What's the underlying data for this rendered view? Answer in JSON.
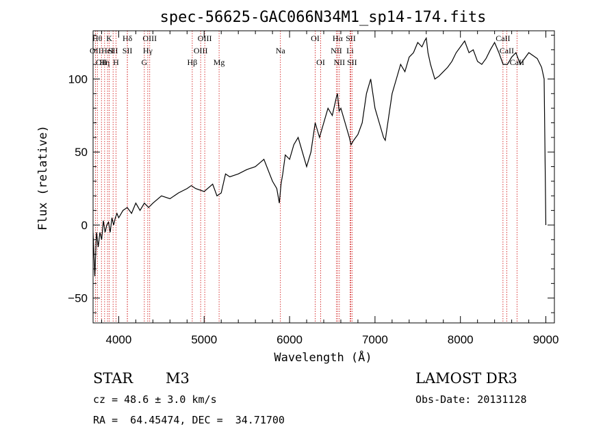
{
  "chart_data": {
    "type": "line",
    "title": "spec-56625-GAC066N34M1_sp14-174.fits",
    "xlabel": "Wavelength (Å)",
    "ylabel": "Flux (relative)",
    "xlim": [
      3700,
      9100
    ],
    "ylim": [
      -67,
      133
    ],
    "xticks": [
      4000,
      5000,
      6000,
      7000,
      8000,
      9000
    ],
    "yticks": [
      -50,
      0,
      50,
      100
    ],
    "grid": false,
    "series": [
      {
        "name": "spectrum",
        "x": [
          3700,
          3720,
          3740,
          3760,
          3780,
          3800,
          3820,
          3840,
          3860,
          3880,
          3900,
          3920,
          3940,
          3960,
          3980,
          4000,
          4050,
          4100,
          4150,
          4200,
          4250,
          4300,
          4350,
          4400,
          4500,
          4600,
          4700,
          4800,
          4850,
          4900,
          5000,
          5100,
          5150,
          5200,
          5250,
          5300,
          5400,
          5500,
          5600,
          5700,
          5800,
          5850,
          5880,
          5900,
          5920,
          5950,
          6000,
          6050,
          6100,
          6150,
          6200,
          6250,
          6300,
          6350,
          6400,
          6450,
          6500,
          6550,
          6560,
          6580,
          6600,
          6650,
          6700,
          6720,
          6750,
          6800,
          6850,
          6900,
          6950,
          7000,
          7050,
          7100,
          7120,
          7150,
          7200,
          7250,
          7300,
          7350,
          7400,
          7450,
          7500,
          7550,
          7580,
          7600,
          7620,
          7650,
          7700,
          7750,
          7800,
          7850,
          7900,
          7950,
          8000,
          8050,
          8100,
          8150,
          8200,
          8250,
          8300,
          8350,
          8400,
          8450,
          8500,
          8550,
          8600,
          8650,
          8700,
          8750,
          8800,
          8850,
          8900,
          8950,
          8980,
          9000
        ],
        "y": [
          -5,
          -35,
          -5,
          -15,
          -5,
          -10,
          3,
          -5,
          0,
          2,
          -5,
          5,
          0,
          5,
          8,
          5,
          10,
          12,
          8,
          15,
          10,
          15,
          12,
          15,
          20,
          18,
          22,
          25,
          27,
          25,
          23,
          28,
          20,
          22,
          35,
          33,
          35,
          38,
          40,
          45,
          30,
          25,
          15,
          28,
          35,
          48,
          45,
          55,
          60,
          50,
          40,
          50,
          70,
          60,
          70,
          80,
          75,
          88,
          90,
          78,
          80,
          70,
          60,
          55,
          58,
          62,
          70,
          90,
          100,
          80,
          70,
          60,
          58,
          70,
          90,
          100,
          110,
          105,
          115,
          118,
          125,
          122,
          126,
          128,
          118,
          110,
          100,
          102,
          105,
          108,
          112,
          118,
          122,
          126,
          118,
          120,
          112,
          110,
          114,
          120,
          125,
          118,
          110,
          110,
          115,
          118,
          110,
          114,
          118,
          116,
          114,
          108,
          100,
          0
        ]
      }
    ],
    "line_markers": [
      {
        "wl": 3727,
        "label": "OII",
        "row": 2
      },
      {
        "wl": 3750,
        "label": "Hθ",
        "row": 1
      },
      {
        "wl": 3798,
        "label": "OII",
        "row": 3
      },
      {
        "wl": 3835,
        "label": "Hη",
        "row": 3
      },
      {
        "wl": 3869,
        "label": "HeI",
        "row": 2
      },
      {
        "wl": 3889,
        "label": "K",
        "row": 1
      },
      {
        "wl": 3934,
        "label": "SII",
        "row": 2
      },
      {
        "wl": 3968,
        "label": "H",
        "row": 3
      },
      {
        "wl": 4102,
        "label": "Hδ",
        "row": 1
      },
      {
        "wl": 4101,
        "label": "SII",
        "row": 2
      },
      {
        "wl": 4300,
        "label": "G",
        "row": 3
      },
      {
        "wl": 4340,
        "label": "Hγ",
        "row": 2
      },
      {
        "wl": 4363,
        "label": "OIII",
        "row": 1
      },
      {
        "wl": 4861,
        "label": "Hβ",
        "row": 3
      },
      {
        "wl": 4959,
        "label": "OIII",
        "row": 2
      },
      {
        "wl": 5007,
        "label": "OIII",
        "row": 1
      },
      {
        "wl": 5175,
        "label": "Mg",
        "row": 3
      },
      {
        "wl": 5893,
        "label": "Na",
        "row": 2
      },
      {
        "wl": 6300,
        "label": "OI",
        "row": 1
      },
      {
        "wl": 6364,
        "label": "OI",
        "row": 3
      },
      {
        "wl": 6548,
        "label": "NII",
        "row": 2
      },
      {
        "wl": 6563,
        "label": "Hα",
        "row": 1
      },
      {
        "wl": 6583,
        "label": "NII",
        "row": 3
      },
      {
        "wl": 6708,
        "label": "Li",
        "row": 2
      },
      {
        "wl": 6716,
        "label": "SII",
        "row": 1
      },
      {
        "wl": 6731,
        "label": "SII",
        "row": 3
      },
      {
        "wl": 8498,
        "label": "CaII",
        "row": 1
      },
      {
        "wl": 8542,
        "label": "CaII",
        "row": 2
      },
      {
        "wl": 8662,
        "label": "CaII",
        "row": 3
      }
    ]
  },
  "info": {
    "object_class": "STAR",
    "subclass": "M3",
    "survey": "LAMOST DR3",
    "cz_text": "cz = 48.6 ± 3.0 km/s",
    "obs_date_text": "Obs-Date: 20131128",
    "coords_text": "RA =  64.45474, DEC =  34.71700"
  },
  "colors": {
    "axis": "#000000",
    "spectrum": "#000000",
    "marker": "#cc0000"
  }
}
